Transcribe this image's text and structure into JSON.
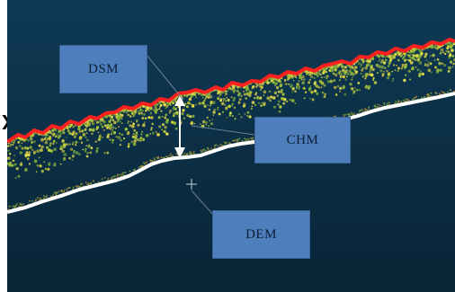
{
  "labels": {
    "dsm": "DSM",
    "chm": "CHM",
    "dem": "DEM"
  },
  "colors": {
    "background": "#0d3148",
    "dsm_line": "#ff1f1f",
    "dem_line": "#ffffff",
    "canopy_points": "#c9d33a",
    "label_box": "#4e7fbc"
  },
  "icons": {
    "left_marker": "chevron-right-icon",
    "crosshair": "plus-icon"
  }
}
